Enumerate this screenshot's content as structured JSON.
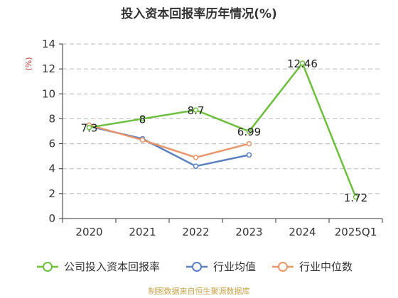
{
  "chart_data": {
    "type": "line",
    "title": "投入资本回报率历年情况(%)",
    "unit_label": "(%)",
    "categories": [
      "2020",
      "2021",
      "2022",
      "2023",
      "2024",
      "2025Q1"
    ],
    "ylim": [
      0,
      14
    ],
    "yticks": [
      0,
      2,
      4,
      6,
      8,
      10,
      12,
      14
    ],
    "grid": true,
    "legend_position": "bottom",
    "series": [
      {
        "name": "公司投入资本回报率",
        "color": "#6cbf3c",
        "values": [
          7.3,
          8,
          8.7,
          6.99,
          12.46,
          1.72
        ],
        "labels": [
          "7.3",
          "8",
          "8.7",
          "6.99",
          "12.46",
          "1.72"
        ]
      },
      {
        "name": "行业均值",
        "color": "#5a7fc2",
        "values": [
          7.4,
          6.4,
          4.2,
          5.1,
          null,
          null
        ]
      },
      {
        "name": "行业中位数",
        "color": "#e8956a",
        "values": [
          7.5,
          6.3,
          4.9,
          6.0,
          null,
          null
        ]
      }
    ],
    "source": "制图数据来自恒生聚源数据库"
  }
}
